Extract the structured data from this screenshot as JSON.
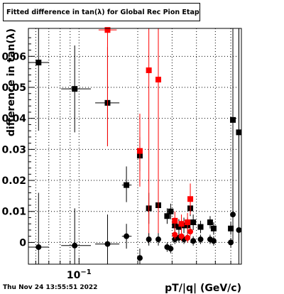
{
  "title": "Fitted difference in tan(λ) for Global Rec Pion EtapT",
  "footer_text": "Thu Nov 24 13:55:51 2022",
  "chart_data": {
    "type": "scatter",
    "xlabel": "pT/|q| (GeV/c)",
    "ylabel": "difference in tan(λ)",
    "xscale": "log",
    "xlim": [
      0.055,
      0.68
    ],
    "ylim": [
      -0.007,
      0.069
    ],
    "grid": true,
    "x_tick_labels": [
      {
        "x": 0.1,
        "base": "10",
        "exp": "−1"
      }
    ],
    "y_tick_labels": [
      {
        "y": 0,
        "label": "0"
      },
      {
        "y": 0.01,
        "label": "0.01"
      },
      {
        "y": 0.02,
        "label": "0.02"
      },
      {
        "y": 0.03,
        "label": "0.03"
      },
      {
        "y": 0.04,
        "label": "0.04"
      },
      {
        "y": 0.05,
        "label": "0.05"
      },
      {
        "y": 0.06,
        "label": "0.06"
      }
    ],
    "series": [
      {
        "marker": "square",
        "color": "#000000",
        "points": [
          {
            "x": 0.062,
            "y": 0.058,
            "xlo": 0.055,
            "xhi": 0.07,
            "ylo": 0.036,
            "yhi": 0.069
          },
          {
            "x": 0.095,
            "y": 0.0495,
            "xlo": 0.081,
            "xhi": 0.115,
            "ylo": 0.0355,
            "yhi": 0.0635
          },
          {
            "x": 0.14,
            "y": 0.045,
            "xlo": 0.121,
            "xhi": 0.161,
            "ylo": 0.031,
            "yhi": 0.063
          },
          {
            "x": 0.175,
            "y": 0.0185,
            "xlo": 0.166,
            "xhi": 0.186,
            "ylo": 0.013,
            "yhi": 0.0245
          },
          {
            "x": 0.205,
            "y": 0.028,
            "xlo": 0.2,
            "xhi": 0.21,
            "ylo": 0.023,
            "yhi": 0.034
          },
          {
            "x": 0.228,
            "y": 0.011,
            "xlo": 0.223,
            "xhi": 0.233,
            "ylo": 0.006,
            "yhi": 0.016
          },
          {
            "x": 0.255,
            "y": 0.012,
            "xlo": 0.25,
            "xhi": 0.26,
            "ylo": 0.007,
            "yhi": 0.017
          },
          {
            "x": 0.283,
            "y": 0.0085,
            "xlo": 0.279,
            "xhi": 0.287,
            "ylo": 0.006,
            "yhi": 0.011
          },
          {
            "x": 0.295,
            "y": 0.01,
            "xlo": 0.291,
            "xhi": 0.299,
            "ylo": 0.0075,
            "yhi": 0.0125
          },
          {
            "x": 0.31,
            "y": 0.0055,
            "xlo": 0.306,
            "xhi": 0.314,
            "ylo": 0.003,
            "yhi": 0.008
          },
          {
            "x": 0.325,
            "y": 0.005,
            "xlo": 0.321,
            "xhi": 0.329,
            "ylo": 0.0025,
            "yhi": 0.0075
          },
          {
            "x": 0.345,
            "y": 0.0055,
            "xlo": 0.341,
            "xhi": 0.349,
            "ylo": 0.003,
            "yhi": 0.008
          },
          {
            "x": 0.36,
            "y": 0.0055,
            "xlo": 0.356,
            "xhi": 0.364,
            "ylo": 0.003,
            "yhi": 0.008
          },
          {
            "x": 0.372,
            "y": 0.011,
            "xlo": 0.368,
            "xhi": 0.376,
            "ylo": 0.0085,
            "yhi": 0.0135
          },
          {
            "x": 0.385,
            "y": 0.0065,
            "xlo": 0.381,
            "xhi": 0.389,
            "ylo": 0.004,
            "yhi": 0.009
          },
          {
            "x": 0.42,
            "y": 0.005,
            "xlo": 0.414,
            "xhi": 0.426,
            "ylo": 0.003,
            "yhi": 0.007
          },
          {
            "x": 0.47,
            "y": 0.0065,
            "xlo": 0.464,
            "xhi": 0.476,
            "ylo": 0.0045,
            "yhi": 0.0085
          },
          {
            "x": 0.49,
            "y": 0.0045,
            "xlo": 0.484,
            "xhi": 0.496,
            "ylo": 0.0025,
            "yhi": 0.0065
          },
          {
            "x": 0.6,
            "y": 0.0045,
            "xlo": 0.594,
            "xhi": 0.606,
            "ylo": 0.0025,
            "yhi": 0.0065
          },
          {
            "x": 0.615,
            "y": 0.0395,
            "xlo": 0.611,
            "xhi": 0.619,
            "ylo": 0.011,
            "yhi": 0.069
          },
          {
            "x": 0.66,
            "y": 0.0355,
            "xlo": 0.654,
            "xhi": 0.666,
            "ylo": 0.0,
            "yhi": 0.069
          }
        ]
      },
      {
        "marker": "square",
        "color": "#ff0000",
        "points": [
          {
            "x": 0.14,
            "y": 0.0685,
            "xlo": 0.126,
            "xhi": 0.156,
            "ylo": 0.031,
            "yhi": 0.069
          },
          {
            "x": 0.205,
            "y": 0.0295,
            "xlo": 0.2,
            "xhi": 0.21,
            "ylo": 0.018,
            "yhi": 0.0415
          },
          {
            "x": 0.228,
            "y": 0.0555,
            "xlo": 0.222,
            "xhi": 0.234,
            "ylo": 0.0,
            "yhi": 0.069
          },
          {
            "x": 0.255,
            "y": 0.0525,
            "xlo": 0.249,
            "xhi": 0.261,
            "ylo": 0.001,
            "yhi": 0.069
          },
          {
            "x": 0.31,
            "y": 0.007,
            "xlo": 0.306,
            "xhi": 0.314,
            "ylo": 0.004,
            "yhi": 0.01
          },
          {
            "x": 0.335,
            "y": 0.006,
            "xlo": 0.331,
            "xhi": 0.339,
            "ylo": 0.003,
            "yhi": 0.009
          },
          {
            "x": 0.36,
            "y": 0.0065,
            "xlo": 0.356,
            "xhi": 0.364,
            "ylo": 0.0035,
            "yhi": 0.0095
          },
          {
            "x": 0.372,
            "y": 0.014,
            "xlo": 0.368,
            "xhi": 0.376,
            "ylo": 0.009,
            "yhi": 0.019
          }
        ]
      },
      {
        "marker": "circle",
        "color": "#000000",
        "points": [
          {
            "x": 0.062,
            "y": -0.0015,
            "xlo": 0.055,
            "xhi": 0.07,
            "ylo": -0.007,
            "yhi": 0.016
          },
          {
            "x": 0.095,
            "y": -0.001,
            "xlo": 0.081,
            "xhi": 0.115,
            "ylo": -0.007,
            "yhi": 0.011
          },
          {
            "x": 0.14,
            "y": -0.0005,
            "xlo": 0.121,
            "xhi": 0.161,
            "ylo": -0.007,
            "yhi": 0.009
          },
          {
            "x": 0.175,
            "y": 0.002,
            "xlo": 0.166,
            "xhi": 0.186,
            "ylo": -0.002,
            "yhi": 0.006
          },
          {
            "x": 0.205,
            "y": -0.005,
            "xlo": 0.2,
            "xhi": 0.21,
            "ylo": -0.007,
            "yhi": -0.002
          },
          {
            "x": 0.228,
            "y": 0.001,
            "xlo": 0.223,
            "xhi": 0.233,
            "ylo": -0.001,
            "yhi": 0.003
          },
          {
            "x": 0.255,
            "y": 0.001,
            "xlo": 0.25,
            "xhi": 0.26,
            "ylo": -0.001,
            "yhi": 0.003
          },
          {
            "x": 0.283,
            "y": -0.0015,
            "xlo": 0.279,
            "xhi": 0.287,
            "ylo": -0.003,
            "yhi": 0.0
          },
          {
            "x": 0.295,
            "y": -0.002,
            "xlo": 0.291,
            "xhi": 0.299,
            "ylo": -0.0035,
            "yhi": -0.0005
          },
          {
            "x": 0.31,
            "y": 0.001,
            "xlo": 0.306,
            "xhi": 0.314,
            "ylo": -0.0005,
            "yhi": 0.0025
          },
          {
            "x": 0.325,
            "y": 0.0015,
            "xlo": 0.321,
            "xhi": 0.329,
            "ylo": 0.0,
            "yhi": 0.003
          },
          {
            "x": 0.345,
            "y": 0.001,
            "xlo": 0.341,
            "xhi": 0.349,
            "ylo": -0.0005,
            "yhi": 0.0025
          },
          {
            "x": 0.36,
            "y": 0.0015,
            "xlo": 0.356,
            "xhi": 0.364,
            "ylo": 0.0,
            "yhi": 0.003
          },
          {
            "x": 0.385,
            "y": 0.0005,
            "xlo": 0.381,
            "xhi": 0.389,
            "ylo": -0.001,
            "yhi": 0.002
          },
          {
            "x": 0.42,
            "y": 0.001,
            "xlo": 0.414,
            "xhi": 0.426,
            "ylo": -0.0005,
            "yhi": 0.0025
          },
          {
            "x": 0.47,
            "y": 0.001,
            "xlo": 0.464,
            "xhi": 0.476,
            "ylo": -0.0005,
            "yhi": 0.0025
          },
          {
            "x": 0.49,
            "y": 0.0005,
            "xlo": 0.484,
            "xhi": 0.496,
            "ylo": -0.001,
            "yhi": 0.002
          },
          {
            "x": 0.6,
            "y": 0.0,
            "xlo": 0.594,
            "xhi": 0.606,
            "ylo": -0.0015,
            "yhi": 0.0015
          },
          {
            "x": 0.615,
            "y": 0.009,
            "xlo": 0.611,
            "xhi": 0.619,
            "ylo": 0.0,
            "yhi": 0.018
          },
          {
            "x": 0.66,
            "y": 0.004,
            "xlo": 0.654,
            "xhi": 0.666,
            "ylo": -0.007,
            "yhi": 0.069
          }
        ]
      },
      {
        "marker": "circle",
        "color": "#ff0000",
        "points": [
          {
            "x": 0.31,
            "y": 0.0025,
            "xlo": 0.306,
            "xhi": 0.314,
            "ylo": 0.001,
            "yhi": 0.004
          },
          {
            "x": 0.335,
            "y": 0.002,
            "xlo": 0.331,
            "xhi": 0.339,
            "ylo": 0.0005,
            "yhi": 0.0035
          },
          {
            "x": 0.36,
            "y": 0.0015,
            "xlo": 0.356,
            "xhi": 0.364,
            "ylo": 0.0,
            "yhi": 0.003
          },
          {
            "x": 0.372,
            "y": 0.0035,
            "xlo": 0.368,
            "xhi": 0.376,
            "ylo": 0.002,
            "yhi": 0.005
          }
        ]
      }
    ]
  }
}
